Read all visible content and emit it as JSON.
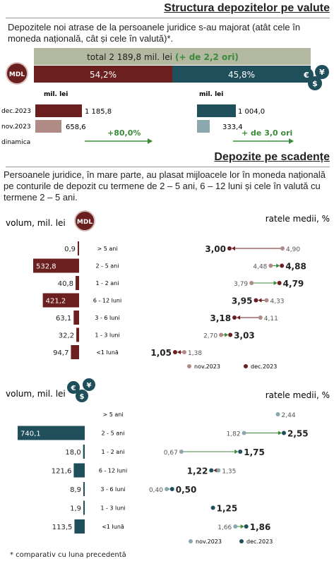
{
  "section1": {
    "title": "Structura depozitelor pe valute",
    "description": "Depozitele noi atrase de la persoanele juridice s-au majorat (atât cele în moneda națională, cât și cele în valută)*.",
    "total_label": "total 2 189,8 mil. lei",
    "total_change": "(+ de 2,2 ori)",
    "mdl_share": "54,2%",
    "fx_share": "45,8%",
    "mdl_icon_text": "MDL",
    "fx_icon_text": "€$¥",
    "unit_mdl": "mil. lei",
    "unit_fx": "mil. lei",
    "rows": [
      {
        "label": "dec.2023",
        "mdl": 1185.8,
        "mdl_text": "1 185,8",
        "fx": 1004.0,
        "fx_text": "1 004,0"
      },
      {
        "label": "nov.2023",
        "mdl": 658.6,
        "mdl_text": "658,6",
        "fx": 333.4,
        "fx_text": "333,4"
      }
    ],
    "dynamics_label": "dinamica",
    "mdl_dynamics": "+80,0%",
    "fx_dynamics": "+ de 3,0 ori"
  },
  "section2": {
    "title": "Depozite pe scadențe",
    "description": "Persoanele juridice, în mare parte, au plasat mijloacele lor în moneda națională pe conturile de depozit cu termene de 2 – 5 ani, 6 – 12 luni și cele în valută cu termene  2 – 5 ani."
  },
  "footnote": "* comparativ cu luna precedentă",
  "colors": {
    "mdl_dark": "#6b1f1f",
    "mdl_light": "#b08a84",
    "fx_dark": "#1f4f5a",
    "fx_light": "#8aa8ae",
    "total_bar": "#b3b9a0",
    "green": "#3b8a3b"
  },
  "chart_data": [
    {
      "type": "bar",
      "currency": "MDL",
      "icon_text": "MDL",
      "left_title": "volum, mil. lei",
      "right_title": "ratele medii, %",
      "legend": [
        "nov.2023",
        "dec.2023"
      ],
      "categories": [
        "> 5 ani",
        "2 - 5 ani",
        "1 - 2 ani",
        "6 - 12 luni",
        "3 - 6 luni",
        "1 - 3 luni",
        "<1 lună"
      ],
      "volume_dec2023": [
        0.9,
        532.8,
        40.8,
        421.2,
        63.1,
        32.2,
        94.7
      ],
      "volume_labels": [
        "0,9",
        "532,8",
        "40,8",
        "421,2",
        "63,1",
        "32,2",
        "94,7"
      ],
      "rate_nov2023": [
        4.9,
        4.48,
        3.79,
        4.33,
        4.11,
        2.7,
        1.38
      ],
      "rate_dec2023": [
        3.0,
        4.88,
        4.79,
        3.95,
        3.18,
        3.03,
        1.05
      ],
      "rate_nov_labels": [
        "4,90",
        "4,48",
        "3,79",
        "4,33",
        "4,11",
        "2,70",
        "1,38"
      ],
      "rate_dec_labels": [
        "3,00",
        "4,88",
        "4,79",
        "3,95",
        "3,18",
        "3,03",
        "1,05"
      ]
    },
    {
      "type": "bar",
      "currency": "FX",
      "icon_text": "€$¥",
      "left_title": "volum, mil. lei",
      "right_title": "ratele medii, %",
      "legend": [
        "nov.2023",
        "dec.2023"
      ],
      "categories": [
        "> 5 ani",
        "2 - 5 ani",
        "1 - 2 ani",
        "6 - 12 luni",
        "3 - 6 luni",
        "1 - 3 luni",
        "<1 lună"
      ],
      "volume_dec2023": [
        0,
        740.1,
        18.0,
        121.6,
        8.9,
        1.9,
        113.5
      ],
      "volume_labels": [
        "",
        "740,1",
        "18,0",
        "121,6",
        "8,9",
        "1,9",
        "113,5"
      ],
      "rate_nov2023": [
        2.44,
        1.82,
        0.67,
        1.35,
        0.4,
        null,
        1.66
      ],
      "rate_dec2023": [
        null,
        2.55,
        1.75,
        1.22,
        0.5,
        1.25,
        1.86
      ],
      "rate_nov_labels": [
        "2,44",
        "1,82",
        "0,67",
        "1,35",
        "0,40",
        "",
        "1,66"
      ],
      "rate_dec_labels": [
        "",
        "2,55",
        "1,75",
        "1,22",
        "0,50",
        "1,25",
        "1,86"
      ]
    }
  ]
}
